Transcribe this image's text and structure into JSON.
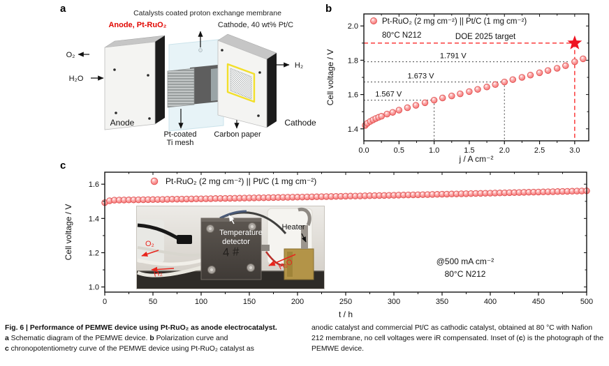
{
  "panels": {
    "a": "a",
    "b": "b",
    "c": "c"
  },
  "panel_a": {
    "title": "Catalysts coated proton exchange membrane",
    "anode_heading": "Anode, Pt-RuO₂",
    "cathode_heading": "Cathode, 40 wt% Pt/C",
    "o2": "O₂",
    "h2o": "H₂O",
    "h2": "H₂",
    "anode_label": "Anode",
    "cathode_label": "Cathode",
    "ti_mesh_line1": "Pt-coated",
    "ti_mesh_line2": "Ti mesh",
    "carbon_paper": "Carbon paper",
    "colors": {
      "anode_heading": "#e10600",
      "membrane": "#e6f3f7",
      "flow_field_outline": "#f2df2b"
    }
  },
  "chart_data": [
    {
      "id": "polarization",
      "type": "scatter",
      "legend": "Pt-RuO₂ (2 mg cm⁻²) || Pt/C (1 mg cm⁻²)",
      "condition": "80°C N212",
      "xlabel": "j / A cm⁻²",
      "ylabel": "Cell voltage / V",
      "xlim": [
        0,
        3.2
      ],
      "ylim": [
        1.33,
        2.07
      ],
      "xticks": [
        0.0,
        0.5,
        1.0,
        1.5,
        2.0,
        2.5,
        3.0
      ],
      "xtick_labels": [
        "0.0",
        "0.5",
        "1.0",
        "1.5",
        "2.0",
        "2.5",
        "3.0"
      ],
      "yticks": [
        1.4,
        1.6,
        1.8,
        2.0
      ],
      "ytick_labels": [
        "1.4",
        "1.6",
        "1.8",
        "2.0"
      ],
      "x": [
        0.02,
        0.05,
        0.09,
        0.13,
        0.17,
        0.21,
        0.25,
        0.33,
        0.41,
        0.5,
        0.62,
        0.74,
        0.87,
        1.0,
        1.12,
        1.25,
        1.37,
        1.5,
        1.62,
        1.75,
        1.87,
        2.0,
        2.12,
        2.25,
        2.37,
        2.5,
        2.62,
        2.75,
        2.87,
        3.0,
        3.12
      ],
      "y": [
        1.42,
        1.432,
        1.443,
        1.452,
        1.46,
        1.467,
        1.473,
        1.486,
        1.496,
        1.509,
        1.523,
        1.537,
        1.552,
        1.567,
        1.58,
        1.592,
        1.604,
        1.617,
        1.63,
        1.644,
        1.658,
        1.673,
        1.687,
        1.7,
        1.713,
        1.727,
        1.74,
        1.753,
        1.768,
        1.791,
        1.808
      ],
      "ref_lines": [
        {
          "label": "1.567 V",
          "v": 1.567,
          "j": 1.0,
          "vline": true,
          "label_x": 0.35
        },
        {
          "label": "1.673 V",
          "v": 1.673,
          "j": 2.0,
          "vline": true,
          "label_x": 0.81
        },
        {
          "label": "1.791 V",
          "v": 1.791,
          "j": 2.93,
          "vline": false,
          "label_x": 1.27
        }
      ],
      "doe_target": {
        "label": "DOE 2025 target",
        "v": 1.9,
        "j": 3.0,
        "label_x": 1.73
      },
      "marker_fill": "#f88080",
      "marker_edge": "#e05252",
      "star_color": "#ee1422",
      "red_line_color": "#f92b2b",
      "ref_line_color": "#444444"
    },
    {
      "id": "chronopotentiometry",
      "type": "scatter",
      "legend": "Pt-RuO₂ (2 mg cm⁻²) || Pt/C (1 mg cm⁻²)",
      "xlabel": "t / h",
      "ylabel": "Cell voltage / V",
      "xlim": [
        0,
        500
      ],
      "ylim": [
        0.97,
        1.67
      ],
      "xticks": [
        0,
        50,
        100,
        150,
        200,
        250,
        300,
        350,
        400,
        450,
        500
      ],
      "xtick_labels": [
        "0",
        "50",
        "100",
        "150",
        "200",
        "250",
        "300",
        "350",
        "400",
        "450",
        "500"
      ],
      "yticks": [
        1.0,
        1.2,
        1.4,
        1.6
      ],
      "ytick_labels": [
        "1.0",
        "1.2",
        "1.4",
        "1.6"
      ],
      "t_start": 0,
      "t_step": 5,
      "values": [
        1.492,
        1.503,
        1.5069,
        1.5072,
        1.5076,
        1.508,
        1.5085,
        1.5089,
        1.5093,
        1.5097,
        1.5102,
        1.5106,
        1.511,
        1.5115,
        1.5119,
        1.5123,
        1.5128,
        1.5132,
        1.5137,
        1.5141,
        1.5146,
        1.5151,
        1.5155,
        1.516,
        1.5165,
        1.5169,
        1.5174,
        1.5179,
        1.5184,
        1.5189,
        1.5194,
        1.5198,
        1.5203,
        1.5208,
        1.5213,
        1.5218,
        1.5223,
        1.5229,
        1.5234,
        1.5239,
        1.5244,
        1.5249,
        1.5254,
        1.526,
        1.5265,
        1.527,
        1.5276,
        1.5281,
        1.5287,
        1.5292,
        1.5298,
        1.5303,
        1.5309,
        1.5314,
        1.532,
        1.5325,
        1.5331,
        1.5337,
        1.5342,
        1.5348,
        1.5354,
        1.536,
        1.5366,
        1.5372,
        1.5377,
        1.5383,
        1.5389,
        1.5395,
        1.5401,
        1.5407,
        1.5414,
        1.542,
        1.5426,
        1.5432,
        1.5438,
        1.5444,
        1.5451,
        1.5457,
        1.5463,
        1.547,
        1.5476,
        1.5482,
        1.5489,
        1.5495,
        1.5502,
        1.5508,
        1.5515,
        1.5522,
        1.5528,
        1.5535,
        1.5542,
        1.5548,
        1.5555,
        1.5562,
        1.5569,
        1.5575,
        1.5582,
        1.5589,
        1.5596,
        1.5603,
        1.561
      ],
      "annotation_line1": "@500 mA cm⁻²",
      "annotation_line2": "80°C N212",
      "marker_fill": "#f88080",
      "marker_edge": "#e05252"
    }
  ],
  "panel_c_inset": {
    "temp1": "Temperature",
    "temp2": "detector",
    "heater": "Heater",
    "o2": "O₂",
    "h2": "H₂",
    "h2o": "H₂O",
    "cell_marking": "4 #"
  },
  "caption": {
    "title": "Fig. 6 | Performance of PEMWE device using Pt-RuO₂ as anode electrocatalyst.",
    "l2a": "a",
    "l2b": " Schematic diagram of the PEMWE device. ",
    "l2c": "b",
    "l2d": " Polarization curve and",
    "l3a": "c",
    "l3b": " chronopotentiometry curve of the PEMWE device using Pt-RuO₂ catalyst as",
    "r1": "anodic catalyst and commercial Pt/C as cathodic catalyst, obtained at 80 °C with",
    "r2": "Nafion 212 membrane, no cell voltages were iR compensated. Inset of (",
    "r3": "c",
    "r4": ") is the",
    "r5": "photograph of the PEMWE device."
  }
}
